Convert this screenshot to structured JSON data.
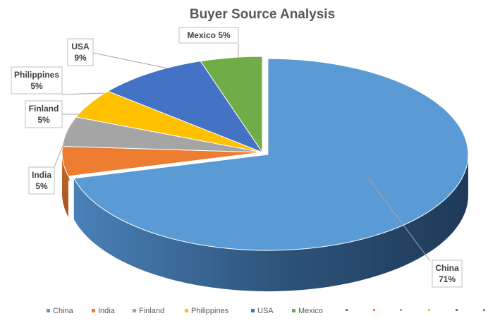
{
  "chart_data": {
    "type": "pie",
    "title": "Buyer Source Analysis",
    "categories": [
      "China",
      "India",
      "Finland",
      "Philippines",
      "USA",
      "Mexico"
    ],
    "values": [
      71,
      5,
      5,
      5,
      9,
      5
    ],
    "data_labels": [
      [
        "China",
        "71%"
      ],
      [
        "India",
        "5%"
      ],
      [
        "Finland",
        "5%"
      ],
      [
        "Philippines",
        "5%"
      ],
      [
        "USA",
        "9%"
      ],
      [
        "Mexico 5%"
      ]
    ],
    "colors": [
      "#5B9BD5",
      "#ED7D31",
      "#A5A5A5",
      "#FFC000",
      "#4472C4",
      "#70AD47"
    ],
    "extra_legend_markers": [
      "#4472C4",
      "#ED7D31",
      "#A5A5A5",
      "#FFC000",
      "#4472C4",
      "#70AD47"
    ],
    "legend_position": "bottom",
    "style": "3d-exploded"
  }
}
